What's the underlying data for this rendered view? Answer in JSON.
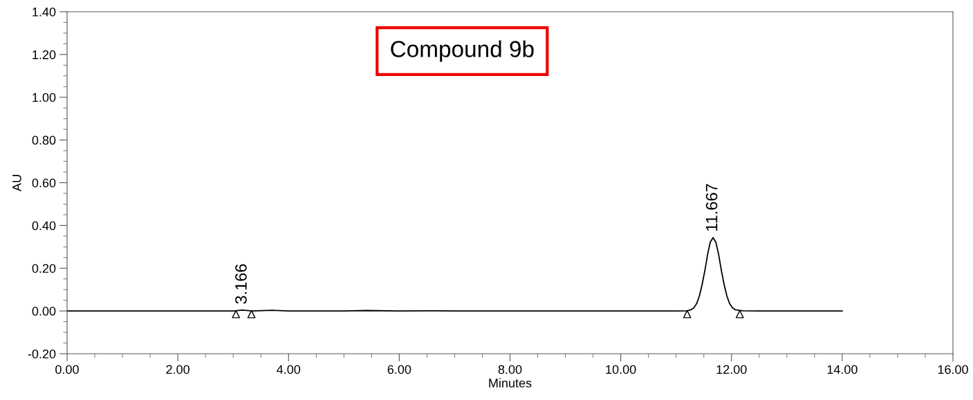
{
  "chart_data": {
    "type": "line",
    "xlabel": "Minutes",
    "ylabel": "AU",
    "xlim": [
      0,
      16
    ],
    "xticks": [
      {
        "value": 0,
        "label": "0.00"
      },
      {
        "value": 2,
        "label": "2.00"
      },
      {
        "value": 4,
        "label": "4.00"
      },
      {
        "value": 6,
        "label": "6.00"
      },
      {
        "value": 8,
        "label": "8.00"
      },
      {
        "value": 10,
        "label": "10.00"
      },
      {
        "value": 12,
        "label": "12.00"
      },
      {
        "value": 14,
        "label": "14.00"
      },
      {
        "value": 16,
        "label": "16.00"
      }
    ],
    "ylim": [
      -0.2,
      1.4
    ],
    "yticks": [
      {
        "value": -0.2,
        "label": "-0.20"
      },
      {
        "value": 0,
        "label": "0.00"
      },
      {
        "value": 0.2,
        "label": "0.20"
      },
      {
        "value": 0.4,
        "label": "0.40"
      },
      {
        "value": 0.6,
        "label": "0.60"
      },
      {
        "value": 0.8,
        "label": "0.80"
      },
      {
        "value": 1.0,
        "label": "1.00"
      },
      {
        "value": 1.2,
        "label": "1.20"
      },
      {
        "value": 1.4,
        "label": "1.40"
      }
    ],
    "grid": false,
    "series": [
      {
        "color": "#000000",
        "marker": "none",
        "x": [
          0,
          1.5,
          3.0,
          3.166,
          3.35,
          3.7,
          4.0,
          5.0,
          5.4,
          6.0,
          6.6,
          7.0,
          11.0,
          11.2,
          11.27,
          11.32,
          11.37,
          11.42,
          11.47,
          11.52,
          11.57,
          11.617,
          11.667,
          11.717,
          11.767,
          11.817,
          11.867,
          11.917,
          11.967,
          12.017,
          12.067,
          12.2,
          12.5,
          14.0
        ],
        "values": [
          0,
          0,
          0,
          0.004,
          0,
          0.003,
          0,
          0,
          0.002,
          0,
          0.001,
          0,
          0,
          0.001,
          0.006,
          0.015,
          0.034,
          0.07,
          0.124,
          0.19,
          0.266,
          0.322,
          0.343,
          0.322,
          0.266,
          0.19,
          0.124,
          0.07,
          0.034,
          0.015,
          0.006,
          0.001,
          0,
          0
        ]
      },
      {
        "type": "scatter",
        "color": "#000000",
        "marker": "triangle",
        "x": [
          3.05,
          3.33,
          11.2,
          12.15
        ],
        "values": [
          -0.015,
          -0.015,
          -0.015,
          -0.015
        ]
      }
    ],
    "annotations": [
      {
        "text": "3.166",
        "x": 3.166,
        "y": 0.004
      },
      {
        "text": "11.667",
        "x": 11.667,
        "y": 0.343
      },
      "Compound 9b"
    ]
  }
}
